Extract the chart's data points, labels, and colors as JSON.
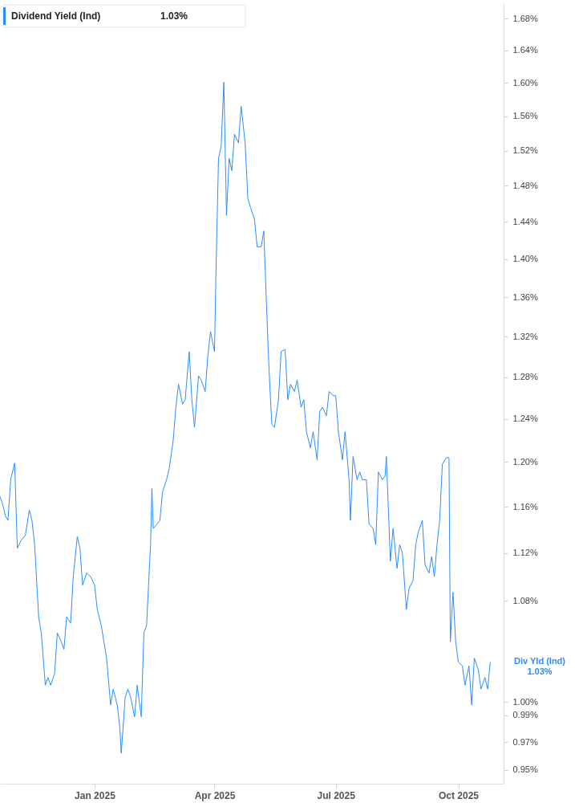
{
  "chart_data": {
    "type": "line",
    "x": [
      "2024-10-22",
      "2024-10-24",
      "2024-10-26",
      "2024-10-28",
      "2024-10-30",
      "2024-11-02",
      "2024-11-04",
      "2024-11-07",
      "2024-11-10",
      "2024-11-13",
      "2024-11-15",
      "2024-11-17",
      "2024-11-20",
      "2024-11-22",
      "2024-11-25",
      "2024-11-27",
      "2024-11-29",
      "2024-12-02",
      "2024-12-04",
      "2024-12-07",
      "2024-12-09",
      "2024-12-11",
      "2024-12-14",
      "2024-12-16",
      "2024-12-19",
      "2024-12-21",
      "2024-12-23",
      "2024-12-26",
      "2024-12-29",
      "2025-01-01",
      "2025-01-03",
      "2025-01-06",
      "2025-01-08",
      "2025-01-10",
      "2025-01-13",
      "2025-01-15",
      "2025-01-18",
      "2025-01-20",
      "2025-01-21",
      "2025-01-24",
      "2025-01-26",
      "2025-01-28",
      "2025-01-31",
      "2025-02-02",
      "2025-02-05",
      "2025-02-07",
      "2025-02-09",
      "2025-02-12",
      "2025-02-13",
      "2025-02-14",
      "2025-02-17",
      "2025-02-19",
      "2025-02-21",
      "2025-02-24",
      "2025-02-26",
      "2025-03-01",
      "2025-03-03",
      "2025-03-05",
      "2025-03-08",
      "2025-03-10",
      "2025-03-13",
      "2025-03-15",
      "2025-03-17",
      "2025-03-20",
      "2025-03-22",
      "2025-03-25",
      "2025-03-27",
      "2025-03-29",
      "2025-04-01",
      "2025-04-02",
      "2025-04-04",
      "2025-04-06",
      "2025-04-08",
      "2025-04-10",
      "2025-04-12",
      "2025-04-14",
      "2025-04-16",
      "2025-04-19",
      "2025-04-21",
      "2025-04-24",
      "2025-04-26",
      "2025-04-28",
      "2025-05-01",
      "2025-05-03",
      "2025-05-06",
      "2025-05-08",
      "2025-05-10",
      "2025-05-12",
      "2025-05-14",
      "2025-05-16",
      "2025-05-19",
      "2025-05-21",
      "2025-05-24",
      "2025-05-26",
      "2025-05-28",
      "2025-05-31",
      "2025-06-02",
      "2025-06-05",
      "2025-06-07",
      "2025-06-09",
      "2025-06-12",
      "2025-06-14",
      "2025-06-17",
      "2025-06-19",
      "2025-06-21",
      "2025-06-24",
      "2025-06-26",
      "2025-06-29",
      "2025-07-01",
      "2025-07-03",
      "2025-07-06",
      "2025-07-08",
      "2025-07-11",
      "2025-07-12",
      "2025-07-14",
      "2025-07-17",
      "2025-07-19",
      "2025-07-21",
      "2025-07-24",
      "2025-07-26",
      "2025-07-29",
      "2025-07-31",
      "2025-08-02",
      "2025-08-05",
      "2025-08-07",
      "2025-08-08",
      "2025-08-11",
      "2025-08-13",
      "2025-08-16",
      "2025-08-18",
      "2025-08-20",
      "2025-08-23",
      "2025-08-25",
      "2025-08-28",
      "2025-08-30",
      "2025-09-01",
      "2025-09-04",
      "2025-09-06",
      "2025-09-09",
      "2025-09-11",
      "2025-09-13",
      "2025-09-15",
      "2025-09-17",
      "2025-09-19",
      "2025-09-22",
      "2025-09-24",
      "2025-09-25",
      "2025-09-27",
      "2025-09-29",
      "2025-10-01",
      "2025-10-04",
      "2025-10-06",
      "2025-10-09",
      "2025-10-11",
      "2025-10-13",
      "2025-10-16",
      "2025-10-18",
      "2025-10-21",
      "2025-10-23",
      "2025-10-25"
    ],
    "series": [
      {
        "name": "Dividend Yield (Ind)",
        "color": "#2b8cff",
        "values": [
          1.169,
          1.162,
          1.152,
          1.148,
          1.184,
          1.199,
          1.124,
          1.131,
          1.135,
          1.157,
          1.148,
          1.127,
          1.067,
          1.054,
          1.013,
          1.019,
          1.013,
          1.022,
          1.054,
          1.047,
          1.041,
          1.067,
          1.062,
          1.1,
          1.134,
          1.124,
          1.093,
          1.103,
          1.1,
          1.093,
          1.073,
          1.06,
          1.047,
          1.034,
          0.998,
          1.01,
          0.998,
          0.98,
          0.962,
          1.004,
          1.01,
          1.004,
          0.989,
          1.013,
          0.989,
          1.054,
          1.06,
          1.127,
          1.176,
          1.141,
          1.145,
          1.148,
          1.173,
          1.184,
          1.194,
          1.22,
          1.251,
          1.273,
          1.254,
          1.258,
          1.305,
          1.258,
          1.232,
          1.281,
          1.277,
          1.266,
          1.301,
          1.325,
          1.305,
          1.379,
          1.511,
          1.525,
          1.601,
          1.447,
          1.511,
          1.497,
          1.539,
          1.529,
          1.572,
          1.529,
          1.466,
          1.456,
          1.443,
          1.413,
          1.413,
          1.43,
          1.353,
          1.285,
          1.235,
          1.232,
          1.258,
          1.305,
          1.307,
          1.258,
          1.273,
          1.266,
          1.277,
          1.251,
          1.258,
          1.228,
          1.213,
          1.228,
          1.202,
          1.247,
          1.251,
          1.243,
          1.266,
          1.262,
          1.262,
          1.228,
          1.202,
          1.228,
          1.184,
          1.148,
          1.205,
          1.184,
          1.191,
          1.184,
          1.184,
          1.145,
          1.141,
          1.127,
          1.191,
          1.184,
          1.187,
          1.205,
          1.113,
          1.141,
          1.107,
          1.127,
          1.12,
          1.073,
          1.09,
          1.097,
          1.127,
          1.138,
          1.148,
          1.11,
          1.103,
          1.117,
          1.1,
          1.127,
          1.148,
          1.198,
          1.204,
          1.204,
          1.047,
          1.087,
          1.047,
          1.031,
          1.028,
          1.013,
          1.028,
          0.998,
          1.034,
          1.025,
          1.01,
          1.019,
          1.01,
          1.031
        ]
      }
    ],
    "xlim": [
      "2024-10-22",
      "2025-11-04"
    ],
    "xticks": [
      {
        "value": "2025-01-01",
        "label": "Jan 2025"
      },
      {
        "value": "2025-04-01",
        "label": "Apr 2025"
      },
      {
        "value": "2025-07-01",
        "label": "Jul 2025"
      },
      {
        "value": "2025-10-01",
        "label": "Oct 2025"
      }
    ],
    "ylim": [
      0.94,
      1.7
    ],
    "log": "y",
    "yticks": [
      {
        "value": 0.95,
        "label": "0.95%"
      },
      {
        "value": 0.97,
        "label": "0.97%"
      },
      {
        "value": 0.99,
        "label": "0.99%"
      },
      {
        "value": 1.0,
        "label": "1.00%"
      },
      {
        "value": 1.08,
        "label": "1.08%"
      },
      {
        "value": 1.12,
        "label": "1.12%"
      },
      {
        "value": 1.16,
        "label": "1.16%"
      },
      {
        "value": 1.2,
        "label": "1.20%"
      },
      {
        "value": 1.24,
        "label": "1.24%"
      },
      {
        "value": 1.28,
        "label": "1.28%"
      },
      {
        "value": 1.32,
        "label": "1.32%"
      },
      {
        "value": 1.36,
        "label": "1.36%"
      },
      {
        "value": 1.4,
        "label": "1.40%"
      },
      {
        "value": 1.44,
        "label": "1.44%"
      },
      {
        "value": 1.48,
        "label": "1.48%"
      },
      {
        "value": 1.52,
        "label": "1.52%"
      },
      {
        "value": 1.56,
        "label": "1.56%"
      },
      {
        "value": 1.6,
        "label": "1.60%"
      },
      {
        "value": 1.64,
        "label": "1.64%"
      },
      {
        "value": 1.68,
        "label": "1.68%"
      }
    ],
    "grid": false,
    "legend": "top left",
    "annotations": [
      "1.03%",
      "Div Yld (Ind)\n1.03%"
    ]
  }
}
